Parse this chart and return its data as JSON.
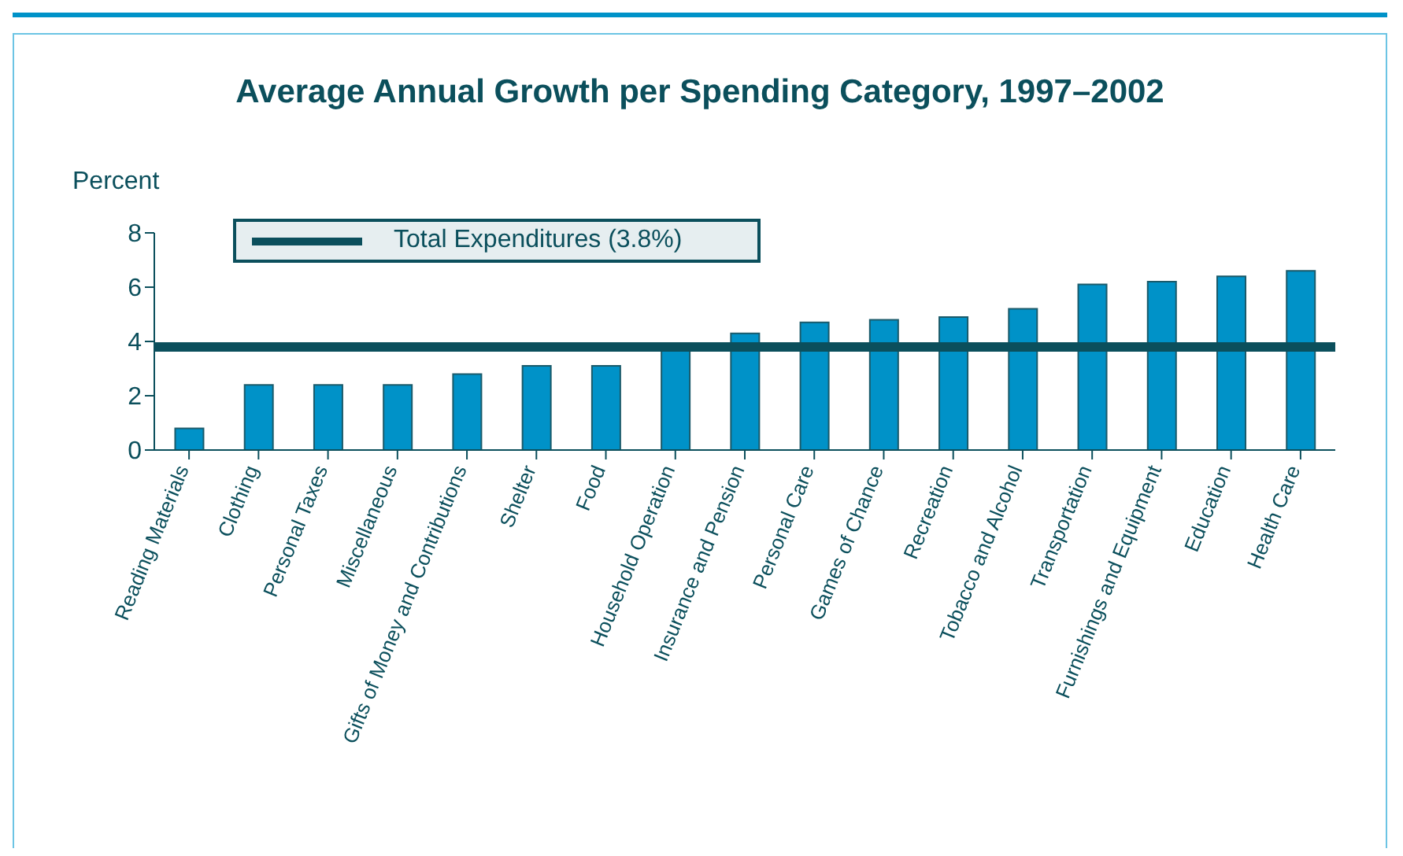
{
  "chart_data": {
    "type": "bar",
    "title": "Average Annual Growth per Spending Category, 1997–2002",
    "ylabel": "Percent",
    "categories": [
      "Reading Materials",
      "Clothing",
      "Personal Taxes",
      "Miscellaneous",
      "Gifts of Money and Contributions",
      "Shelter",
      "Food",
      "Household Operation",
      "Insurance and Pension",
      "Personal Care",
      "Games of Chance",
      "Recreation",
      "Tobacco and Alcohol",
      "Transportation",
      "Furnishings and Equipment",
      "Education",
      "Health Care"
    ],
    "values": [
      0.8,
      2.4,
      2.4,
      2.4,
      2.8,
      3.1,
      3.1,
      3.8,
      4.3,
      4.7,
      4.8,
      4.9,
      5.2,
      6.1,
      6.2,
      6.4,
      6.6
    ],
    "color": "#0092c8",
    "ylim": [
      0,
      8
    ],
    "yticks": [
      0,
      2,
      4,
      6,
      8
    ],
    "grid": false,
    "ref_lines": [
      {
        "axis": "y",
        "value": 3.8,
        "label": "Total Expenditures (3.8%)",
        "color": "#0b4f5c"
      }
    ],
    "legend": "top left"
  }
}
